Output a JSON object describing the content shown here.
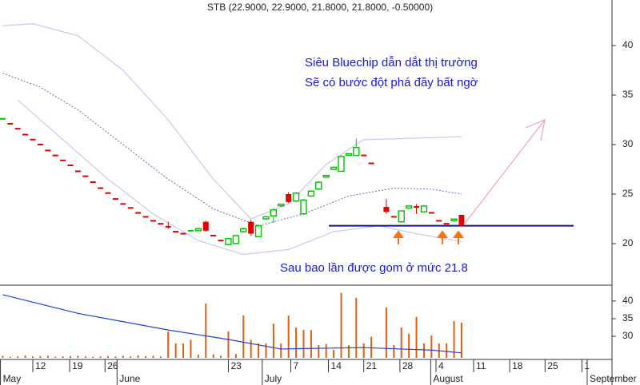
{
  "chart_data": {
    "type": "candlestick",
    "title": "STB (22.9000, 22.9000, 21.8000, 21.8000, -0.50000)",
    "annotations": [
      "Siêu Bluechip dẫn dắt thị trường",
      "Sẽ có bước đột phá đầy bất ngờ",
      "Sau bao lần được gom ở mức 21.8"
    ],
    "support_level": 21.8,
    "x": [
      0,
      1,
      2,
      3,
      4,
      5,
      6,
      7,
      8,
      9,
      10,
      11,
      12,
      13,
      14,
      15,
      16,
      17,
      18,
      19,
      20,
      21,
      22,
      23,
      24,
      25,
      26,
      27,
      28,
      29,
      30,
      31,
      32,
      33,
      34,
      35,
      36,
      37,
      38,
      39,
      40,
      41,
      42,
      43,
      44,
      45,
      46,
      47,
      48,
      49,
      51,
      52,
      53,
      54,
      55,
      56,
      57,
      58,
      59,
      60,
      61
    ],
    "open": [
      32.6,
      32.1,
      31.6,
      31.0,
      30.5,
      30.0,
      29.4,
      28.9,
      28.4,
      27.9,
      27.3,
      26.8,
      26.2,
      25.6,
      25.1,
      24.5,
      24.0,
      23.6,
      23.1,
      22.7,
      22.3,
      22.0,
      21.7,
      21.2,
      21.0,
      21.3,
      21.3,
      22.2,
      20.8,
      20.3,
      19.9,
      20.0,
      21.2,
      22.2,
      20.7,
      22.5,
      22.8,
      23.8,
      25.0,
      24.3,
      23.0,
      24.8,
      25.5,
      26.7,
      27.5,
      27.3,
      28.9,
      28.9,
      28.9,
      28.1,
      23.7,
      22.7,
      22.2,
      23.6,
      23.7,
      23.2,
      23.1,
      22.3,
      22.0,
      22.3,
      22.9
    ],
    "high": [
      32.6,
      32.1,
      31.6,
      31.0,
      30.5,
      30.0,
      29.4,
      28.9,
      28.4,
      27.9,
      27.3,
      26.8,
      26.2,
      25.6,
      25.1,
      24.5,
      24.0,
      23.6,
      23.1,
      22.7,
      22.3,
      22.0,
      22.2,
      21.2,
      21.0,
      21.3,
      21.6,
      22.3,
      20.8,
      20.3,
      20.6,
      20.9,
      21.6,
      22.4,
      21.9,
      22.8,
      23.6,
      24.0,
      25.2,
      25.2,
      24.5,
      25.4,
      26.3,
      26.9,
      27.8,
      28.9,
      29.0,
      30.6,
      28.9,
      28.1,
      24.5,
      22.7,
      23.3,
      23.9,
      24.0,
      23.9,
      23.1,
      22.3,
      22.0,
      22.5,
      22.9
    ],
    "low": [
      32.6,
      32.1,
      31.6,
      31.0,
      30.5,
      30.0,
      29.4,
      28.9,
      28.4,
      27.9,
      27.3,
      26.8,
      26.2,
      25.6,
      25.1,
      24.5,
      24.0,
      23.6,
      23.1,
      22.7,
      22.3,
      22.0,
      21.5,
      21.2,
      21.0,
      21.3,
      21.3,
      21.2,
      20.8,
      20.3,
      19.8,
      20.0,
      21.1,
      20.8,
      20.7,
      22.4,
      22.1,
      23.7,
      24.1,
      24.2,
      22.9,
      24.7,
      25.4,
      26.6,
      27.4,
      27.3,
      28.8,
      28.9,
      28.9,
      28.1,
      23.0,
      22.7,
      22.1,
      23.5,
      23.0,
      23.1,
      23.1,
      22.3,
      22.0,
      22.2,
      21.8
    ],
    "close": [
      32.6,
      32.1,
      31.6,
      31.0,
      30.5,
      30.0,
      29.4,
      28.9,
      28.4,
      27.9,
      27.3,
      26.8,
      26.2,
      25.6,
      25.1,
      24.5,
      24.0,
      23.6,
      23.1,
      22.7,
      22.3,
      22.0,
      21.7,
      21.2,
      21.0,
      21.3,
      21.5,
      21.3,
      20.8,
      20.3,
      20.5,
      20.8,
      21.5,
      21.0,
      21.8,
      22.7,
      23.4,
      23.9,
      24.2,
      25.1,
      24.4,
      25.3,
      26.2,
      26.8,
      27.7,
      28.8,
      29.0,
      29.7,
      28.9,
      28.1,
      23.2,
      22.7,
      23.3,
      23.8,
      23.6,
      23.8,
      23.1,
      22.3,
      22.0,
      22.4,
      21.8
    ],
    "up_color": "#00c000",
    "down_color": "#e00000",
    "bands": [
      {
        "x": [
          0,
          4,
          10,
          16,
          22,
          28,
          33,
          38,
          43,
          48,
          53,
          57,
          61
        ],
        "values": [
          42.0,
          42.2,
          41.0,
          37.5,
          32.5,
          26.5,
          22.5,
          24.0,
          28.0,
          30.5,
          30.6,
          30.7,
          30.8
        ],
        "color": "#c8c8f0"
      },
      {
        "x": [
          0,
          5,
          10,
          16,
          22,
          28,
          34,
          40,
          46,
          52,
          57,
          61
        ],
        "values": [
          37.2,
          35.8,
          33.5,
          30.0,
          26.5,
          23.5,
          21.8,
          23.0,
          24.8,
          25.6,
          25.5,
          25.0
        ],
        "color": "#6070b0",
        "dashed": true
      },
      {
        "x": [
          2,
          8,
          14,
          20,
          26,
          32,
          38,
          44,
          50,
          55,
          61
        ],
        "values": [
          34.5,
          30.5,
          26.5,
          23.0,
          20.3,
          18.9,
          19.4,
          21.2,
          21.8,
          21.0,
          20.2
        ],
        "color": "#c8c8f0"
      }
    ],
    "ylim": [
      15.8,
      44.6
    ],
    "yticks": [
      20,
      25,
      30,
      35,
      40
    ],
    "volume": [
      24.5,
      24.2,
      24.3,
      24.6,
      24.3,
      24.4,
      24.5,
      24.2,
      24.3,
      24.4,
      24.5,
      24.3,
      24.2,
      24.3,
      24.4,
      24.3,
      24.5,
      24.3,
      24.6,
      24.4,
      24.5,
      24.3,
      31.4,
      28.0,
      28.0,
      29.0,
      24.8,
      39.3,
      24.9,
      24.5,
      31.4,
      25.0,
      35.9,
      29.0,
      28.0,
      28.0,
      33.6,
      28.0,
      35.9,
      32.5,
      31.8,
      31.8,
      27.5,
      27.8,
      26.2,
      42.3,
      27.5,
      40.9,
      28.0,
      29.9,
      38.2,
      27.5,
      32.5,
      30.7,
      35.5,
      28.0,
      30.2,
      28.0,
      28.0,
      34.3,
      33.9
    ],
    "volume_color": "#e06010",
    "volume_ma": {
      "x": [
        0,
        10,
        22,
        30,
        37,
        42,
        48,
        53,
        57,
        61
      ],
      "values": [
        41.8,
        36.5,
        31.8,
        29.1,
        26.4,
        26.6,
        26.8,
        26.4,
        26.1,
        25.3
      ],
      "color": "#2040e0"
    },
    "y2lim": [
      23.9,
      44.5
    ],
    "y2ticks": [
      30,
      35,
      40
    ],
    "xlim": [
      -0.36,
      81.0
    ],
    "xticks": [
      {
        "value": 4.0,
        "label": "12"
      },
      {
        "value": 8.9,
        "label": "19"
      },
      {
        "value": 13.6,
        "label": "26"
      },
      {
        "value": 30.0,
        "label": "23"
      },
      {
        "value": 38.3,
        "label": "7"
      },
      {
        "value": 43.3,
        "label": "14"
      },
      {
        "value": 48.0,
        "label": "21"
      },
      {
        "value": 52.8,
        "label": "28"
      },
      {
        "value": 57.6,
        "label": "4"
      },
      {
        "value": 62.6,
        "label": "11"
      },
      {
        "value": 67.4,
        "label": "18"
      },
      {
        "value": 72.1,
        "label": "25"
      },
      {
        "value": 77.0,
        "label": "1"
      }
    ],
    "x_month_ticks": [
      {
        "value": -0.3,
        "label": "May"
      },
      {
        "value": 15.2,
        "label": "June"
      },
      {
        "value": 34.5,
        "label": "July"
      },
      {
        "value": 56.9,
        "label": "August"
      },
      {
        "value": 77.7,
        "label": "September"
      }
    ]
  }
}
